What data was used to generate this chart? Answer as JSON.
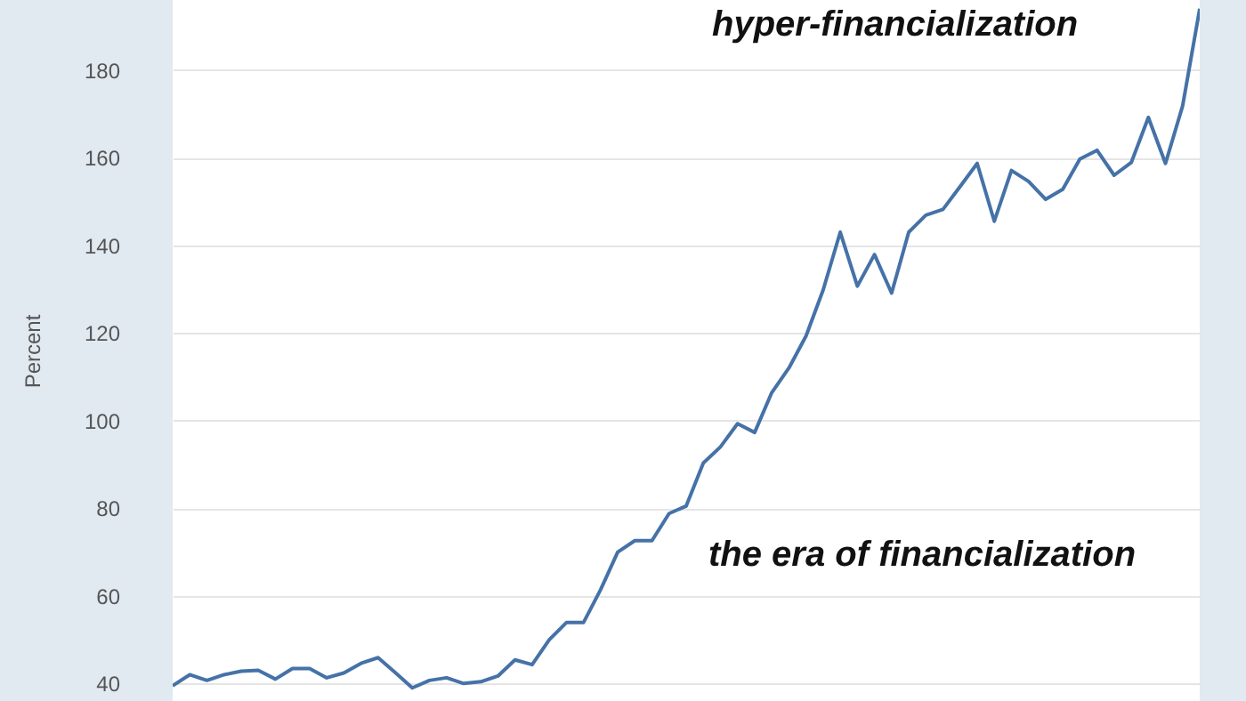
{
  "chart_data": {
    "type": "line",
    "ylabel": "Percent",
    "categories": [
      null,
      null,
      null,
      null,
      null,
      null,
      null,
      null,
      null,
      null,
      null,
      null,
      null,
      null,
      null,
      null,
      null,
      null,
      null,
      null,
      null,
      null,
      null,
      null,
      null,
      null,
      null,
      null,
      null,
      null,
      null,
      null,
      null,
      null,
      null,
      null,
      null,
      null,
      null,
      null,
      null,
      null,
      null,
      null,
      null,
      null,
      null,
      null,
      null,
      null,
      null,
      null,
      null,
      null,
      null,
      null,
      null,
      null,
      null,
      null,
      null
    ],
    "series": [
      {
        "color": "#4572a7",
        "values": [
          39.5,
          42,
          40.7,
          42,
          42.8,
          43,
          41,
          43.4,
          43.4,
          41.3,
          42.4,
          44.6,
          45.9,
          42.5,
          39,
          40.7,
          41.3,
          40,
          40.4,
          41.7,
          45.4,
          44.3,
          50,
          53.9,
          53.9,
          61.4,
          70,
          72.6,
          72.6,
          78.8,
          80.5,
          90.3,
          94,
          99.3,
          97.3,
          106.4,
          112,
          119.3,
          129.8,
          143,
          130.7,
          137.9,
          129.1,
          143,
          146.9,
          148.2,
          153.4,
          158.7,
          145.5,
          157.1,
          154.6,
          150.5,
          152.8,
          159.7,
          161.7,
          156,
          158.9,
          169.2,
          158.7,
          171.8,
          194
        ]
      }
    ],
    "ylim": [
      36,
      196
    ],
    "yticks": [
      40,
      60,
      80,
      100,
      120,
      140,
      160,
      180
    ],
    "grid": "y",
    "tick_labels": "y",
    "legend": false,
    "marker": "none",
    "line_style": "solid",
    "annotations": [
      "hyper-financialization",
      "the era of financialization"
    ]
  }
}
